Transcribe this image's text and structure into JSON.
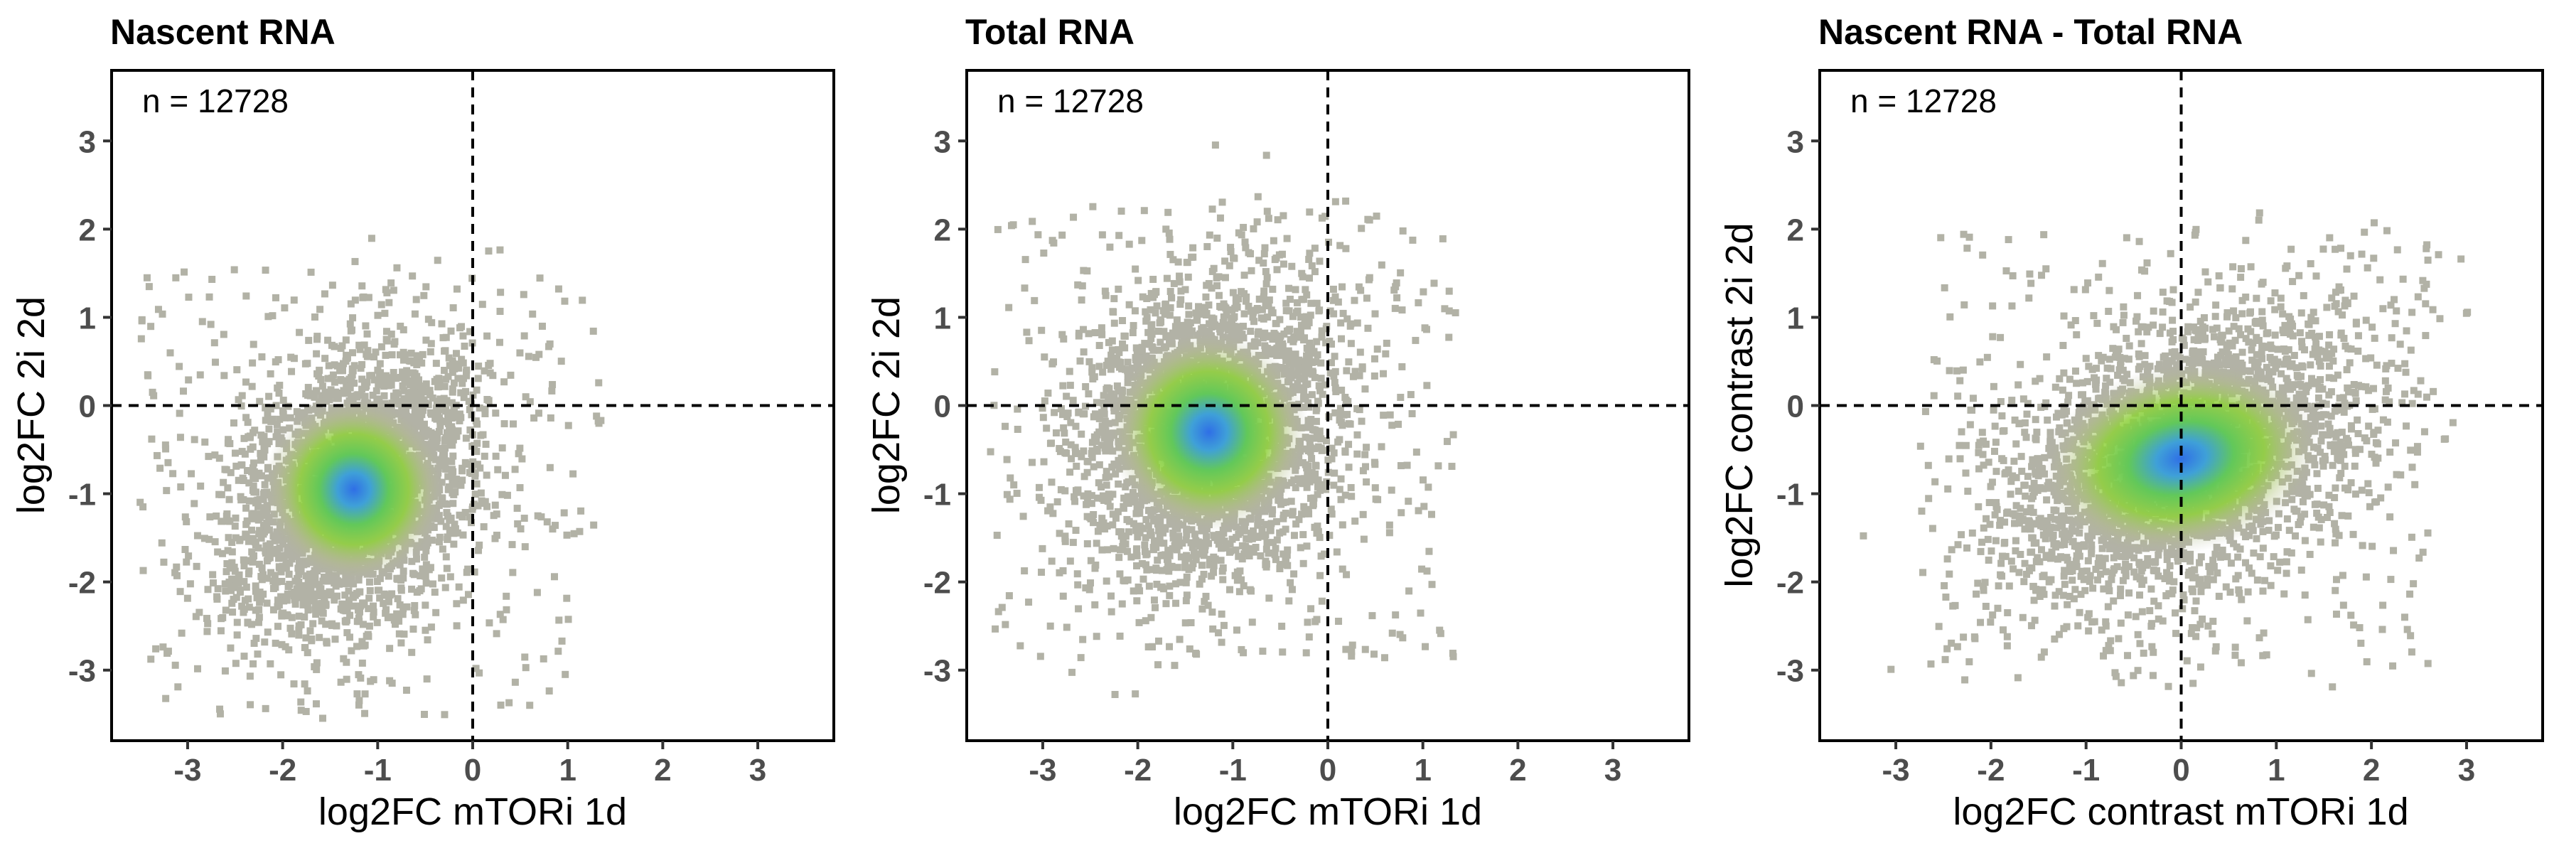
{
  "figure": {
    "panels": [
      {
        "title": "Nascent RNA",
        "annotation": "n = 12728"
      },
      {
        "title": "Total RNA",
        "annotation": "n = 12728"
      },
      {
        "title": "Nascent RNA - Total RNA",
        "annotation": "n = 12728"
      }
    ]
  },
  "colors": {
    "points": "#b2b2a6",
    "density_low": "#7fd13f",
    "density_high": "#2f6fe6",
    "frame": "#000000",
    "tick_labels": "#4d4d4d",
    "reference_lines": "#000000"
  },
  "chart_data": [
    {
      "type": "scatter",
      "title": "Nascent RNA",
      "xlabel": "log2FC mTORi 1d",
      "ylabel": "log2FC 2i 2d",
      "annotation": "n = 12728",
      "n_points": 12728,
      "xlim": [
        -3.8,
        3.8
      ],
      "ylim": [
        -3.8,
        3.8
      ],
      "xticks": [
        -3,
        -2,
        -1,
        0,
        1,
        2,
        3
      ],
      "yticks": [
        -3,
        -2,
        -1,
        0,
        1,
        2,
        3
      ],
      "reference_lines": {
        "x": 0,
        "y": 0,
        "style": "dashed"
      },
      "density_center": [
        -1.25,
        -0.95
      ],
      "point_color": "grey, colored by point density (green to blue)",
      "grid": false,
      "legend": "none"
    },
    {
      "type": "scatter",
      "title": "Total RNA",
      "xlabel": "log2FC mTORi 1d",
      "ylabel": "log2FC 2i 2d",
      "annotation": "n = 12728",
      "n_points": 12728,
      "xlim": [
        -3.8,
        3.8
      ],
      "ylim": [
        -3.8,
        3.8
      ],
      "xticks": [
        -3,
        -2,
        -1,
        0,
        1,
        2,
        3
      ],
      "yticks": [
        -3,
        -2,
        -1,
        0,
        1,
        2,
        3
      ],
      "reference_lines": {
        "x": 0,
        "y": 0,
        "style": "dashed"
      },
      "density_center": [
        -1.25,
        -0.3
      ],
      "point_color": "grey, colored by point density (green to blue)",
      "grid": false,
      "legend": "none"
    },
    {
      "type": "scatter",
      "title": "Nascent RNA - Total RNA",
      "xlabel": "log2FC contrast mTORi 1d",
      "ylabel": "log2FC contrast 2i 2d",
      "annotation": "n = 12728",
      "n_points": 12728,
      "xlim": [
        -3.8,
        3.8
      ],
      "ylim": [
        -3.8,
        3.8
      ],
      "xticks": [
        -3,
        -2,
        -1,
        0,
        1,
        2,
        3
      ],
      "yticks": [
        -3,
        -2,
        -1,
        0,
        1,
        2,
        3
      ],
      "reference_lines": {
        "x": 0,
        "y": 0,
        "style": "dashed"
      },
      "density_center": [
        0.0,
        -0.6
      ],
      "point_color": "grey, colored by point density (green to blue)",
      "grid": false,
      "legend": "none"
    }
  ]
}
